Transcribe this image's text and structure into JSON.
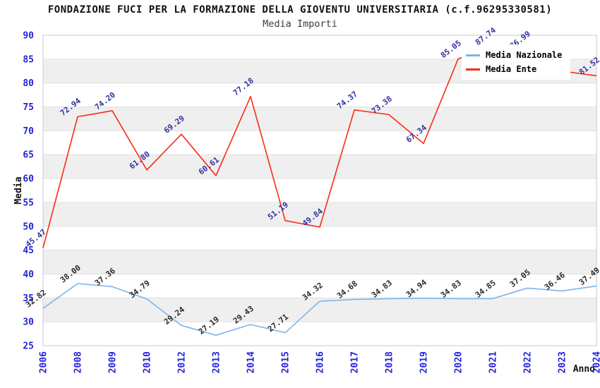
{
  "chart_data": {
    "type": "line",
    "title": "FONDAZIONE FUCI PER LA FORMAZIONE DELLA GIOVENTU UNIVERSITARIA (c.f.96295330581)",
    "subtitle": "Media Importi",
    "xlabel": "Anno",
    "ylabel": "Media",
    "x": [
      "2006",
      "2008",
      "2009",
      "2010",
      "2012",
      "2013",
      "2014",
      "2015",
      "2016",
      "2017",
      "2018",
      "2019",
      "2020",
      "2021",
      "2022",
      "2023",
      "2024"
    ],
    "series": [
      {
        "name": "Media Nazionale",
        "color": "#7cb5ec",
        "label_color": "#2a2a2a",
        "values": [
          32.82,
          38.0,
          37.36,
          34.79,
          29.24,
          27.19,
          29.43,
          27.71,
          34.32,
          34.68,
          34.83,
          34.94,
          34.83,
          34.85,
          37.05,
          36.46,
          37.49
        ],
        "labels": [
          "32.82",
          "38.00",
          "37.36",
          "34.79",
          "29.24",
          "27.19",
          "29.43",
          "27.71",
          "34.32",
          "34.68",
          "34.83",
          "34.94",
          "34.83",
          "34.85",
          "37.05",
          "36.46",
          "37.49"
        ]
      },
      {
        "name": "Media Ente",
        "color": "#fa2a1a",
        "label_color": "#3333a0",
        "values": [
          45.47,
          72.94,
          74.2,
          61.8,
          69.29,
          60.61,
          77.18,
          51.19,
          49.84,
          74.37,
          73.38,
          67.34,
          85.05,
          87.74,
          86.99,
          82.5,
          81.52
        ],
        "labels": [
          "45.47",
          "72.94",
          "74.20",
          "61.80",
          "69.29",
          "60.61",
          "77.18",
          "51.19",
          "49.84",
          "74.37",
          "73.38",
          "67.34",
          "85.05",
          "87.74",
          "86.99",
          null,
          "81.52"
        ]
      }
    ],
    "ylim": [
      25,
      90
    ],
    "ytick_step": 5,
    "y_ticks": [
      "25",
      "30",
      "35",
      "40",
      "45",
      "50",
      "55",
      "60",
      "65",
      "70",
      "75",
      "80",
      "85",
      "90"
    ],
    "grid": "horizontal gridlines with alternating shaded bands",
    "legend_position": "top-right"
  },
  "colors": {
    "band": "#efefef",
    "grid": "#e0e0e0",
    "plot_border": "#c9c9c9",
    "tick_label": "#2222dd",
    "title": "#111111",
    "subtitle": "#3c3c3c"
  }
}
